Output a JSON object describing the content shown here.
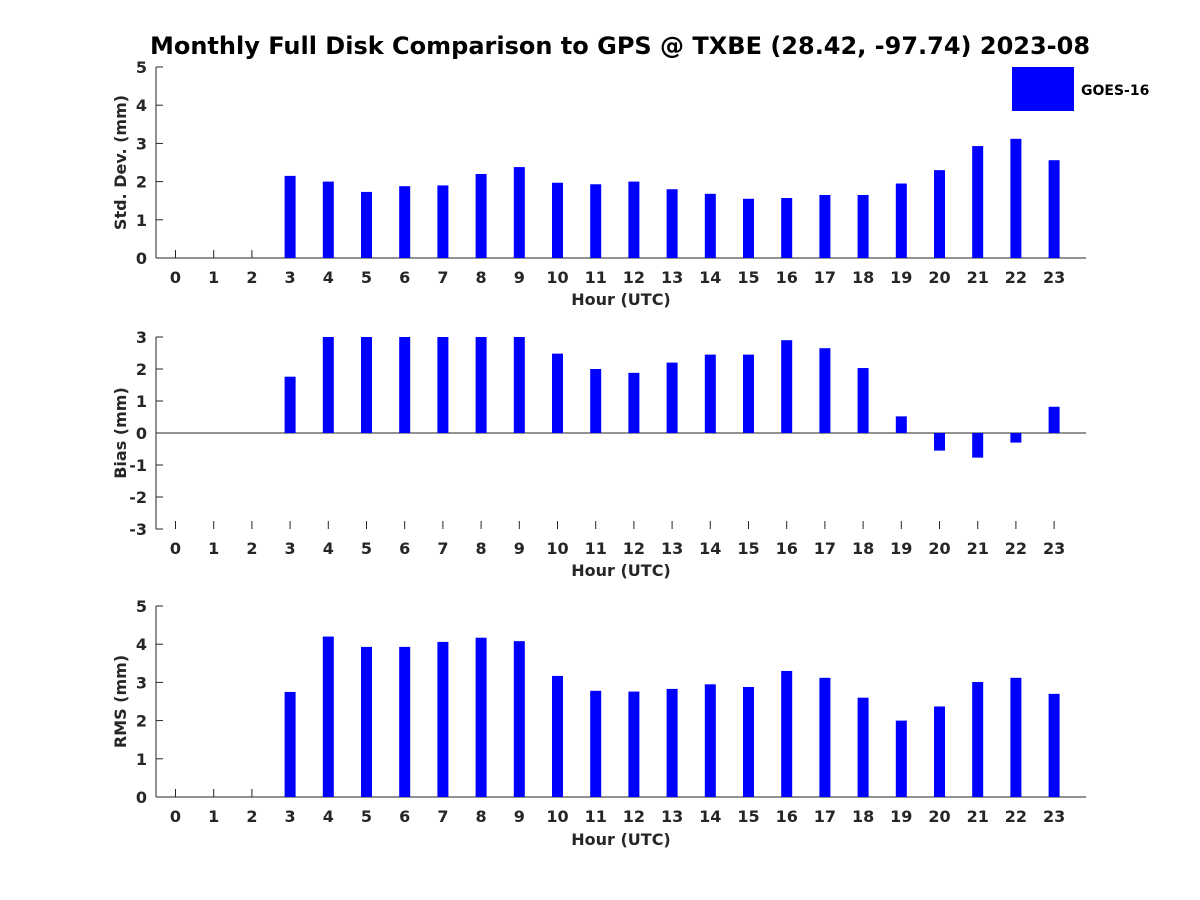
{
  "title": "Monthly Full Disk Comparison to GPS @ TXBE (28.42, -97.74) 2023-08",
  "legend": {
    "label": "GOES-16",
    "color": "#0000ff",
    "placement": "top-right"
  },
  "chart_data": [
    {
      "type": "bar",
      "ylabel": "Std. Dev. (mm)",
      "xlabel": "Hour (UTC)",
      "ylim": [
        0,
        5
      ],
      "yticks": [
        0,
        1,
        2,
        3,
        4,
        5
      ],
      "categories": [
        "0",
        "1",
        "2",
        "3",
        "4",
        "5",
        "6",
        "7",
        "8",
        "9",
        "10",
        "11",
        "12",
        "13",
        "14",
        "15",
        "16",
        "17",
        "18",
        "19",
        "20",
        "21",
        "22",
        "23"
      ],
      "series": [
        {
          "name": "GOES-16",
          "color": "#0000ff",
          "values": [
            null,
            null,
            null,
            2.15,
            2.0,
            1.73,
            1.88,
            1.9,
            2.2,
            2.38,
            1.97,
            1.93,
            2.0,
            1.8,
            1.68,
            1.55,
            1.57,
            1.65,
            1.65,
            1.95,
            2.3,
            2.93,
            3.12,
            2.56
          ]
        }
      ]
    },
    {
      "type": "bar",
      "ylabel": "Bias (mm)",
      "xlabel": "Hour (UTC)",
      "ylim": [
        -3,
        3
      ],
      "yticks": [
        -3,
        -2,
        -1,
        0,
        1,
        2,
        3
      ],
      "categories": [
        "0",
        "1",
        "2",
        "3",
        "4",
        "5",
        "6",
        "7",
        "8",
        "9",
        "10",
        "11",
        "12",
        "13",
        "14",
        "15",
        "16",
        "17",
        "18",
        "19",
        "20",
        "21",
        "22",
        "23"
      ],
      "series": [
        {
          "name": "GOES-16",
          "color": "#0000ff",
          "values": [
            null,
            null,
            null,
            1.76,
            3.0,
            3.0,
            3.0,
            3.0,
            3.0,
            3.0,
            2.48,
            2.0,
            1.88,
            2.2,
            2.45,
            2.45,
            2.9,
            2.65,
            2.03,
            0.52,
            -0.55,
            -0.77,
            -0.3,
            0.82
          ]
        }
      ]
    },
    {
      "type": "bar",
      "ylabel": "RMS (mm)",
      "xlabel": "Hour (UTC)",
      "ylim": [
        0,
        5
      ],
      "yticks": [
        0,
        1,
        2,
        3,
        4,
        5
      ],
      "categories": [
        "0",
        "1",
        "2",
        "3",
        "4",
        "5",
        "6",
        "7",
        "8",
        "9",
        "10",
        "11",
        "12",
        "13",
        "14",
        "15",
        "16",
        "17",
        "18",
        "19",
        "20",
        "21",
        "22",
        "23"
      ],
      "series": [
        {
          "name": "GOES-16",
          "color": "#0000ff",
          "values": [
            null,
            null,
            null,
            2.75,
            4.2,
            3.93,
            3.93,
            4.06,
            4.17,
            4.08,
            3.17,
            2.78,
            2.76,
            2.83,
            2.95,
            2.88,
            3.3,
            3.12,
            2.6,
            2.0,
            2.37,
            3.01,
            3.12,
            2.7
          ]
        }
      ]
    }
  ]
}
